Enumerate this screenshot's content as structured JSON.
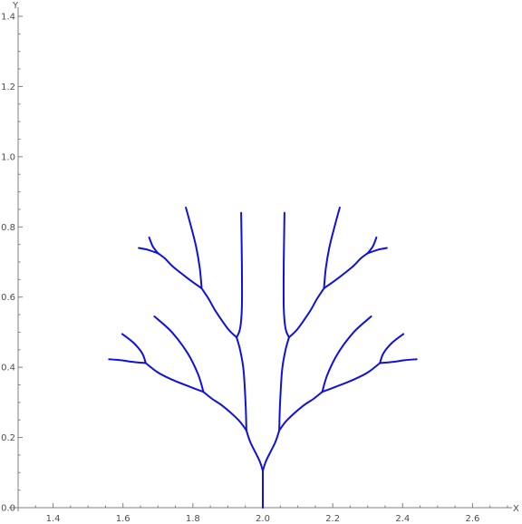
{
  "chart_data": {
    "type": "line",
    "title": "",
    "xlabel": "X",
    "ylabel": "Y",
    "xlim": [
      1.3,
      2.7
    ],
    "ylim": [
      0,
      1.4
    ],
    "x_ticks": [
      "1.4",
      "1.6",
      "1.8",
      "2.0",
      "2.2",
      "2.4",
      "2.6"
    ],
    "y_ticks": [
      "0.0",
      "0.2",
      "0.4",
      "0.6",
      "0.8",
      "1.0",
      "1.2",
      "1.4"
    ],
    "grid": false,
    "series_color": "#1111dd",
    "series": [
      {
        "points": [
          [
            2.0,
            0.0
          ],
          [
            2.0,
            0.105
          ]
        ]
      },
      {
        "points": [
          [
            2.0,
            0.105
          ],
          [
            1.99,
            0.135
          ],
          [
            1.965,
            0.185
          ],
          [
            1.953,
            0.22
          ]
        ]
      },
      {
        "points": [
          [
            2.0,
            0.105
          ],
          [
            2.01,
            0.135
          ],
          [
            2.035,
            0.185
          ],
          [
            2.047,
            0.22
          ]
        ]
      },
      {
        "points": [
          [
            1.953,
            0.22
          ],
          [
            1.93,
            0.25
          ],
          [
            1.885,
            0.29
          ],
          [
            1.855,
            0.31
          ],
          [
            1.83,
            0.33
          ]
        ]
      },
      {
        "points": [
          [
            1.953,
            0.22
          ],
          [
            1.951,
            0.29
          ],
          [
            1.945,
            0.39
          ],
          [
            1.935,
            0.45
          ],
          [
            1.925,
            0.485
          ]
        ]
      },
      {
        "points": [
          [
            2.047,
            0.22
          ],
          [
            2.07,
            0.25
          ],
          [
            2.115,
            0.29
          ],
          [
            2.145,
            0.31
          ],
          [
            2.17,
            0.33
          ]
        ]
      },
      {
        "points": [
          [
            2.047,
            0.22
          ],
          [
            2.049,
            0.29
          ],
          [
            2.055,
            0.39
          ],
          [
            2.065,
            0.45
          ],
          [
            2.075,
            0.485
          ]
        ]
      },
      {
        "points": [
          [
            1.925,
            0.485
          ],
          [
            1.9,
            0.51
          ],
          [
            1.865,
            0.56
          ],
          [
            1.845,
            0.595
          ],
          [
            1.825,
            0.625
          ]
        ]
      },
      {
        "points": [
          [
            1.925,
            0.485
          ],
          [
            1.935,
            0.51
          ],
          [
            1.94,
            0.57
          ],
          [
            1.94,
            0.7
          ],
          [
            1.938,
            0.84
          ]
        ]
      },
      {
        "points": [
          [
            2.075,
            0.485
          ],
          [
            2.1,
            0.51
          ],
          [
            2.135,
            0.56
          ],
          [
            2.155,
            0.595
          ],
          [
            2.175,
            0.625
          ]
        ]
      },
      {
        "points": [
          [
            2.075,
            0.485
          ],
          [
            2.065,
            0.51
          ],
          [
            2.06,
            0.57
          ],
          [
            2.06,
            0.7
          ],
          [
            2.062,
            0.84
          ]
        ]
      },
      {
        "points": [
          [
            1.825,
            0.625
          ],
          [
            1.82,
            0.68
          ],
          [
            1.81,
            0.74
          ],
          [
            1.795,
            0.8
          ],
          [
            1.78,
            0.855
          ]
        ]
      },
      {
        "points": [
          [
            1.825,
            0.625
          ],
          [
            1.79,
            0.65
          ],
          [
            1.745,
            0.685
          ],
          [
            1.72,
            0.71
          ],
          [
            1.7,
            0.725
          ]
        ]
      },
      {
        "points": [
          [
            2.175,
            0.625
          ],
          [
            2.18,
            0.68
          ],
          [
            2.19,
            0.74
          ],
          [
            2.205,
            0.8
          ],
          [
            2.22,
            0.855
          ]
        ]
      },
      {
        "points": [
          [
            2.175,
            0.625
          ],
          [
            2.21,
            0.65
          ],
          [
            2.255,
            0.685
          ],
          [
            2.28,
            0.71
          ],
          [
            2.3,
            0.725
          ]
        ]
      },
      {
        "points": [
          [
            1.7,
            0.725
          ],
          [
            1.685,
            0.745
          ],
          [
            1.675,
            0.77
          ]
        ]
      },
      {
        "points": [
          [
            1.7,
            0.725
          ],
          [
            1.67,
            0.735
          ],
          [
            1.645,
            0.74
          ]
        ]
      },
      {
        "points": [
          [
            2.3,
            0.725
          ],
          [
            2.315,
            0.745
          ],
          [
            2.325,
            0.77
          ]
        ]
      },
      {
        "points": [
          [
            2.3,
            0.725
          ],
          [
            2.33,
            0.735
          ],
          [
            2.355,
            0.74
          ]
        ]
      },
      {
        "points": [
          [
            1.83,
            0.33
          ],
          [
            1.815,
            0.38
          ],
          [
            1.785,
            0.44
          ],
          [
            1.74,
            0.5
          ],
          [
            1.69,
            0.545
          ]
        ]
      },
      {
        "points": [
          [
            1.83,
            0.33
          ],
          [
            1.79,
            0.345
          ],
          [
            1.74,
            0.365
          ],
          [
            1.7,
            0.385
          ],
          [
            1.665,
            0.412
          ]
        ]
      },
      {
        "points": [
          [
            2.17,
            0.33
          ],
          [
            2.185,
            0.38
          ],
          [
            2.215,
            0.44
          ],
          [
            2.26,
            0.5
          ],
          [
            2.31,
            0.545
          ]
        ]
      },
      {
        "points": [
          [
            2.17,
            0.33
          ],
          [
            2.21,
            0.345
          ],
          [
            2.26,
            0.365
          ],
          [
            2.3,
            0.385
          ],
          [
            2.335,
            0.412
          ]
        ]
      },
      {
        "points": [
          [
            1.665,
            0.412
          ],
          [
            1.655,
            0.44
          ],
          [
            1.63,
            0.47
          ],
          [
            1.598,
            0.495
          ]
        ]
      },
      {
        "points": [
          [
            1.665,
            0.412
          ],
          [
            1.63,
            0.415
          ],
          [
            1.595,
            0.42
          ],
          [
            1.56,
            0.423
          ]
        ]
      },
      {
        "points": [
          [
            2.335,
            0.412
          ],
          [
            2.345,
            0.44
          ],
          [
            2.37,
            0.47
          ],
          [
            2.402,
            0.495
          ]
        ]
      },
      {
        "points": [
          [
            2.335,
            0.412
          ],
          [
            2.37,
            0.415
          ],
          [
            2.405,
            0.42
          ],
          [
            2.44,
            0.423
          ]
        ]
      }
    ]
  }
}
